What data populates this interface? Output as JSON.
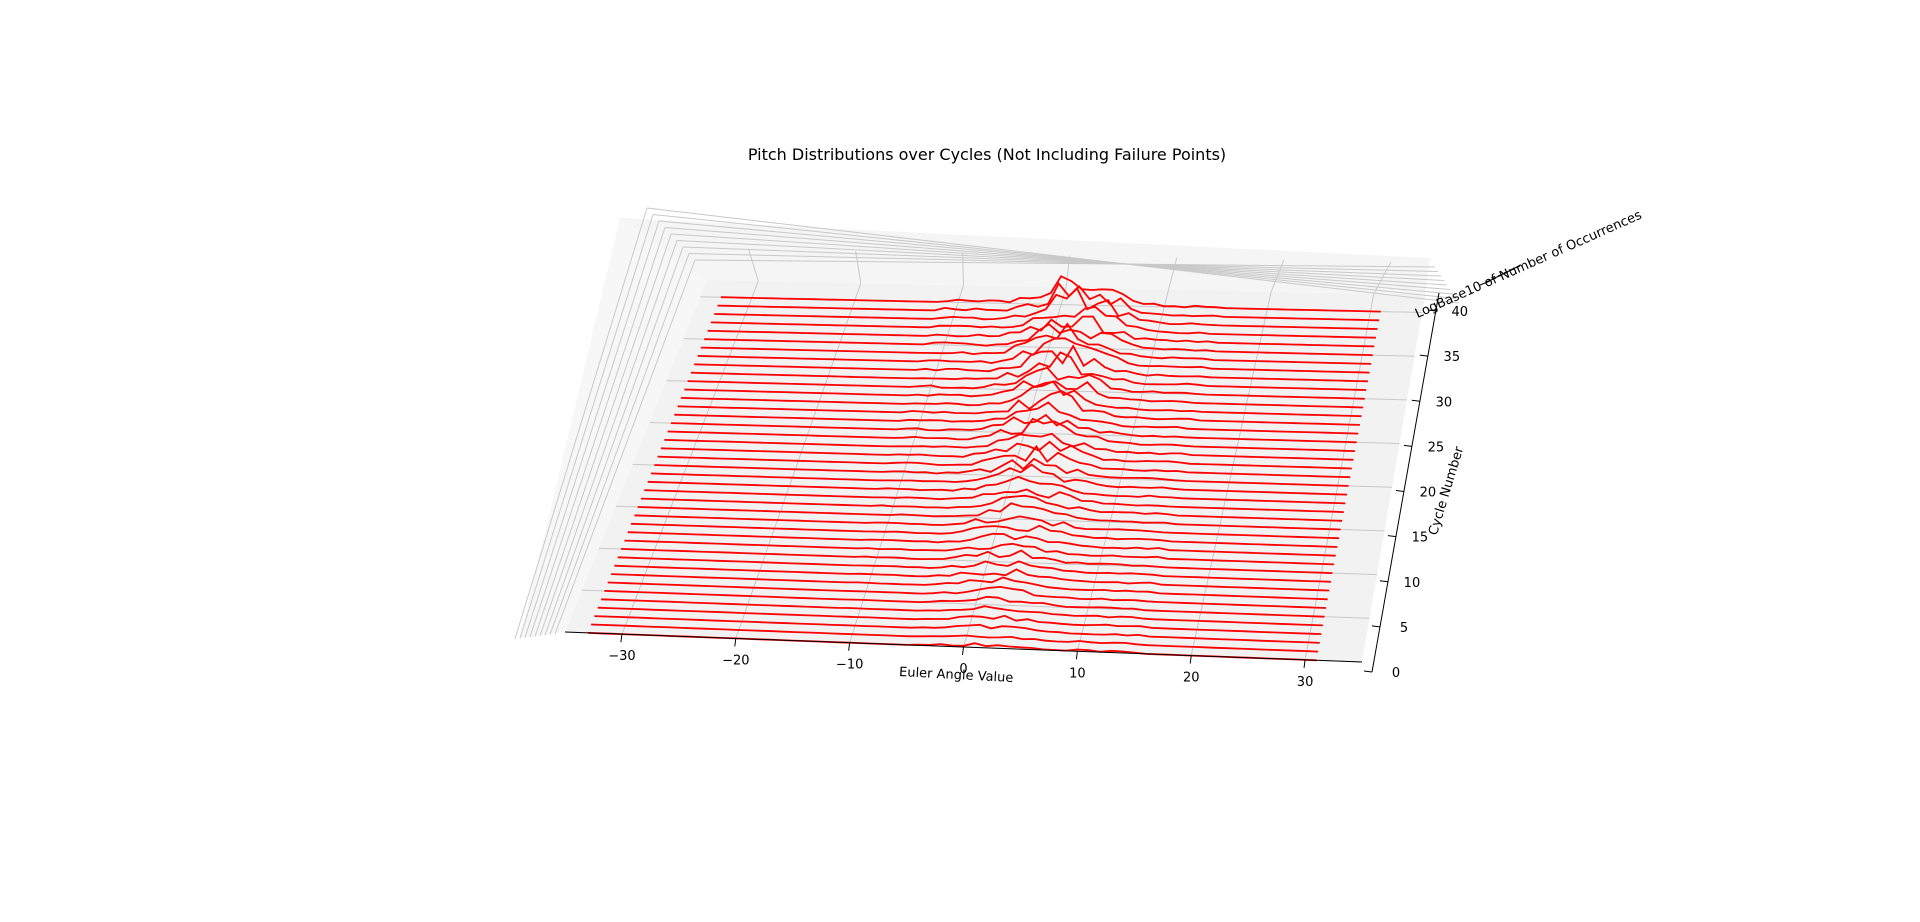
{
  "chart_data": {
    "type": "line",
    "projection": "3d",
    "title": "Pitch Distributions over Cycles (Not Including Failure Points)",
    "xlabel": "Euler Angle Value",
    "ylabel": "Cycle Number",
    "zlabel": "LogBase10 of Number of Occurrences",
    "xlim": [
      -35,
      35
    ],
    "ylim": [
      0,
      42
    ],
    "x_ticks": [
      -30,
      -20,
      -10,
      0,
      10,
      20,
      30
    ],
    "y_ticks": [
      0,
      5,
      10,
      15,
      20,
      25,
      30,
      35,
      40
    ],
    "grid": true,
    "line_color": "#ff0000",
    "pane_color": "#f2f2f2",
    "series_count": 41
  }
}
